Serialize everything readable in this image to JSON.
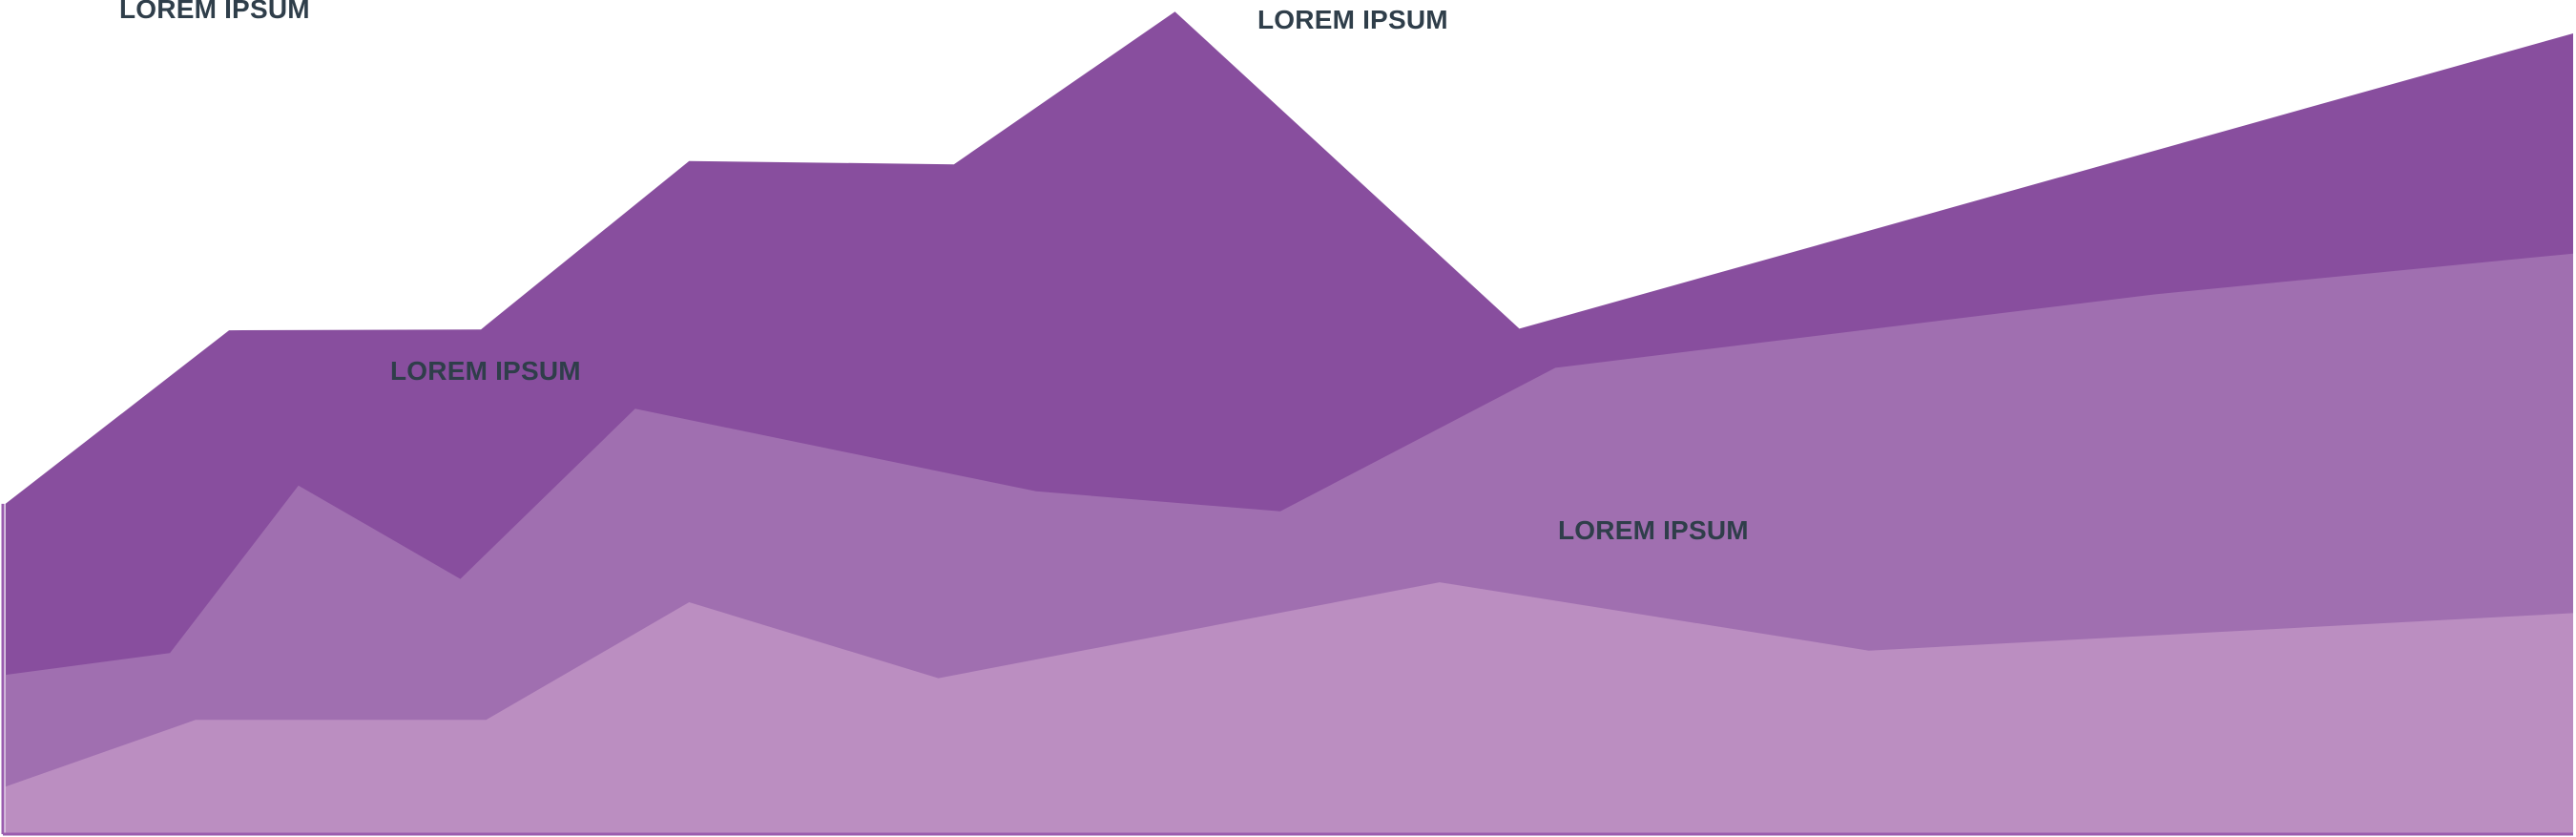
{
  "chart_data": {
    "type": "area",
    "xlim": [
      0,
      100
    ],
    "ylim": [
      0,
      100
    ],
    "grid": false,
    "legend": "none",
    "series": [
      {
        "color": "#884e9e",
        "x": [
          0.1,
          8.8,
          18.6,
          26.7,
          37.0,
          45.6,
          59.0,
          100.0
        ],
        "y": [
          39.6,
          60.4,
          60.5,
          80.7,
          80.3,
          98.6,
          60.6,
          96.0
        ]
      },
      {
        "color": "#a06fb0",
        "x": [
          0.1,
          6.5,
          11.5,
          17.8,
          24.6,
          40.2,
          49.7,
          60.4,
          83.7,
          100.0
        ],
        "y": [
          19.1,
          21.7,
          41.8,
          30.6,
          51.0,
          41.1,
          38.7,
          55.9,
          64.7,
          69.6
        ]
      },
      {
        "color": "#bb8ec1",
        "x": [
          0.1,
          7.5,
          18.8,
          26.7,
          36.4,
          55.9,
          72.6,
          100.0
        ],
        "y": [
          5.7,
          13.7,
          13.7,
          27.8,
          18.7,
          30.2,
          22.0,
          26.5
        ]
      }
    ],
    "annotations": [
      {
        "id": "label-1",
        "text": "LOREM IPSUM"
      },
      {
        "id": "label-2",
        "text": "LOREM IPSUM"
      },
      {
        "id": "label-3",
        "text": "LOREM IPSUM"
      },
      {
        "id": "label-4",
        "text": "LOREM IPSUM"
      }
    ],
    "axis_line_color": "#9a5cae",
    "label_color": "#2f3e4a"
  }
}
